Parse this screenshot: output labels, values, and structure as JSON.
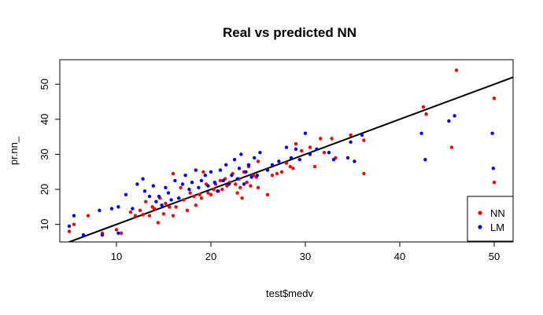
{
  "chart_data": {
    "type": "scatter",
    "title": "Real vs predicted NN",
    "xlabel": "test$medv",
    "ylabel": "pr.nn_",
    "xlim": [
      4,
      52
    ],
    "ylim": [
      5,
      57
    ],
    "xticks": [
      10,
      20,
      30,
      40,
      50
    ],
    "yticks": [
      10,
      20,
      30,
      40,
      50
    ],
    "xtick_labels": [
      "10",
      "20",
      "30",
      "40",
      "50"
    ],
    "ytick_labels": [
      "10",
      "20",
      "30",
      "40",
      "50"
    ],
    "grid": false,
    "legend_position": "bottom-right",
    "reference_line": {
      "slope": 1,
      "intercept": 0,
      "color": "#000000"
    },
    "series": [
      {
        "name": "NN",
        "color": "#ff0000",
        "points": [
          [
            5.0,
            8.0
          ],
          [
            5.5,
            10.0
          ],
          [
            7.0,
            12.5
          ],
          [
            8.5,
            7.5
          ],
          [
            10.0,
            8.5
          ],
          [
            10.5,
            7.5
          ],
          [
            11.5,
            13.5
          ],
          [
            12.0,
            12.5
          ],
          [
            12.5,
            14.0
          ],
          [
            12.8,
            12.8
          ],
          [
            13.1,
            16.5
          ],
          [
            13.5,
            12.5
          ],
          [
            13.8,
            15.0
          ],
          [
            14.0,
            14.5
          ],
          [
            14.4,
            10.5
          ],
          [
            14.6,
            17.5
          ],
          [
            15.0,
            13.0
          ],
          [
            15.2,
            16.0
          ],
          [
            15.6,
            15.0
          ],
          [
            16.0,
            12.5
          ],
          [
            16.0,
            24.5
          ],
          [
            16.3,
            15.0
          ],
          [
            16.8,
            20.5
          ],
          [
            17.1,
            17.0
          ],
          [
            17.5,
            14.0
          ],
          [
            17.8,
            19.0
          ],
          [
            18.2,
            18.0
          ],
          [
            18.4,
            15.5
          ],
          [
            18.8,
            18.5
          ],
          [
            19.0,
            17.5
          ],
          [
            19.2,
            25.0
          ],
          [
            19.5,
            21.5
          ],
          [
            19.7,
            19.0
          ],
          [
            20.0,
            18.5
          ],
          [
            20.3,
            20.0
          ],
          [
            20.5,
            21.5
          ],
          [
            20.8,
            19.5
          ],
          [
            21.0,
            22.5
          ],
          [
            21.2,
            20.0
          ],
          [
            21.5,
            23.0
          ],
          [
            21.7,
            21.0
          ],
          [
            22.0,
            22.0
          ],
          [
            22.3,
            24.5
          ],
          [
            22.6,
            21.5
          ],
          [
            22.8,
            19.0
          ],
          [
            23.0,
            23.0
          ],
          [
            23.1,
            20.5
          ],
          [
            23.3,
            17.5
          ],
          [
            23.5,
            25.0
          ],
          [
            23.8,
            22.0
          ],
          [
            24.0,
            26.5
          ],
          [
            24.2,
            21.0
          ],
          [
            24.5,
            24.0
          ],
          [
            24.8,
            23.5
          ],
          [
            25.0,
            28.0
          ],
          [
            25.0,
            20.5
          ],
          [
            26.0,
            18.5
          ],
          [
            26.5,
            24.0
          ],
          [
            27.0,
            24.5
          ],
          [
            27.5,
            25.0
          ],
          [
            28.0,
            27.5
          ],
          [
            28.4,
            26.5
          ],
          [
            28.7,
            26.0
          ],
          [
            29.0,
            33.0
          ],
          [
            29.6,
            31.0
          ],
          [
            30.5,
            32.0
          ],
          [
            31.0,
            26.5
          ],
          [
            31.6,
            34.5
          ],
          [
            32.0,
            30.5
          ],
          [
            32.8,
            34.5
          ],
          [
            33.2,
            29.0
          ],
          [
            34.8,
            35.5
          ],
          [
            36.2,
            34.0
          ],
          [
            36.2,
            24.5
          ],
          [
            42.5,
            43.5
          ],
          [
            42.8,
            41.5
          ],
          [
            45.5,
            32.0
          ],
          [
            46.0,
            54.0
          ],
          [
            50.0,
            46.0
          ],
          [
            50.0,
            22.0
          ]
        ]
      },
      {
        "name": "LM",
        "color": "#0000ff",
        "points": [
          [
            5.0,
            9.5
          ],
          [
            5.5,
            12.5
          ],
          [
            6.5,
            7.0
          ],
          [
            8.2,
            14.0
          ],
          [
            8.5,
            7.0
          ],
          [
            9.5,
            14.5
          ],
          [
            10.2,
            15.0
          ],
          [
            10.2,
            7.5
          ],
          [
            11.0,
            18.5
          ],
          [
            11.7,
            14.5
          ],
          [
            12.2,
            21.5
          ],
          [
            12.8,
            23.0
          ],
          [
            13.0,
            19.5
          ],
          [
            13.5,
            18.0
          ],
          [
            13.9,
            21.0
          ],
          [
            14.2,
            16.5
          ],
          [
            14.5,
            18.0
          ],
          [
            14.8,
            15.5
          ],
          [
            15.2,
            20.5
          ],
          [
            15.5,
            19.0
          ],
          [
            15.8,
            17.0
          ],
          [
            16.2,
            22.5
          ],
          [
            16.6,
            17.5
          ],
          [
            17.0,
            21.5
          ],
          [
            17.3,
            24.0
          ],
          [
            17.7,
            20.0
          ],
          [
            18.0,
            22.0
          ],
          [
            18.4,
            25.5
          ],
          [
            18.7,
            20.5
          ],
          [
            19.0,
            22.5
          ],
          [
            19.4,
            24.0
          ],
          [
            19.7,
            21.0
          ],
          [
            20.0,
            25.0
          ],
          [
            20.4,
            22.0
          ],
          [
            20.7,
            19.5
          ],
          [
            21.0,
            25.5
          ],
          [
            21.3,
            22.5
          ],
          [
            21.6,
            27.0
          ],
          [
            21.9,
            21.5
          ],
          [
            22.2,
            24.0
          ],
          [
            22.5,
            28.5
          ],
          [
            22.8,
            23.0
          ],
          [
            23.0,
            26.0
          ],
          [
            23.2,
            30.0
          ],
          [
            23.5,
            21.5
          ],
          [
            23.7,
            25.0
          ],
          [
            24.0,
            27.0
          ],
          [
            24.3,
            23.5
          ],
          [
            24.6,
            29.0
          ],
          [
            24.9,
            24.0
          ],
          [
            25.2,
            30.5
          ],
          [
            26.0,
            25.5
          ],
          [
            26.5,
            27.0
          ],
          [
            27.2,
            28.0
          ],
          [
            28.0,
            32.0
          ],
          [
            28.5,
            29.0
          ],
          [
            29.0,
            31.5
          ],
          [
            29.4,
            28.5
          ],
          [
            30.0,
            36.0
          ],
          [
            30.5,
            30.0
          ],
          [
            31.2,
            31.5
          ],
          [
            32.5,
            30.5
          ],
          [
            33.0,
            28.5
          ],
          [
            34.5,
            29.0
          ],
          [
            34.8,
            33.5
          ],
          [
            35.2,
            28.0
          ],
          [
            36.0,
            35.5
          ],
          [
            42.3,
            36.0
          ],
          [
            42.7,
            28.5
          ],
          [
            45.2,
            39.5
          ],
          [
            45.8,
            41.0
          ],
          [
            49.8,
            36.0
          ],
          [
            49.9,
            26.0
          ]
        ]
      }
    ]
  }
}
